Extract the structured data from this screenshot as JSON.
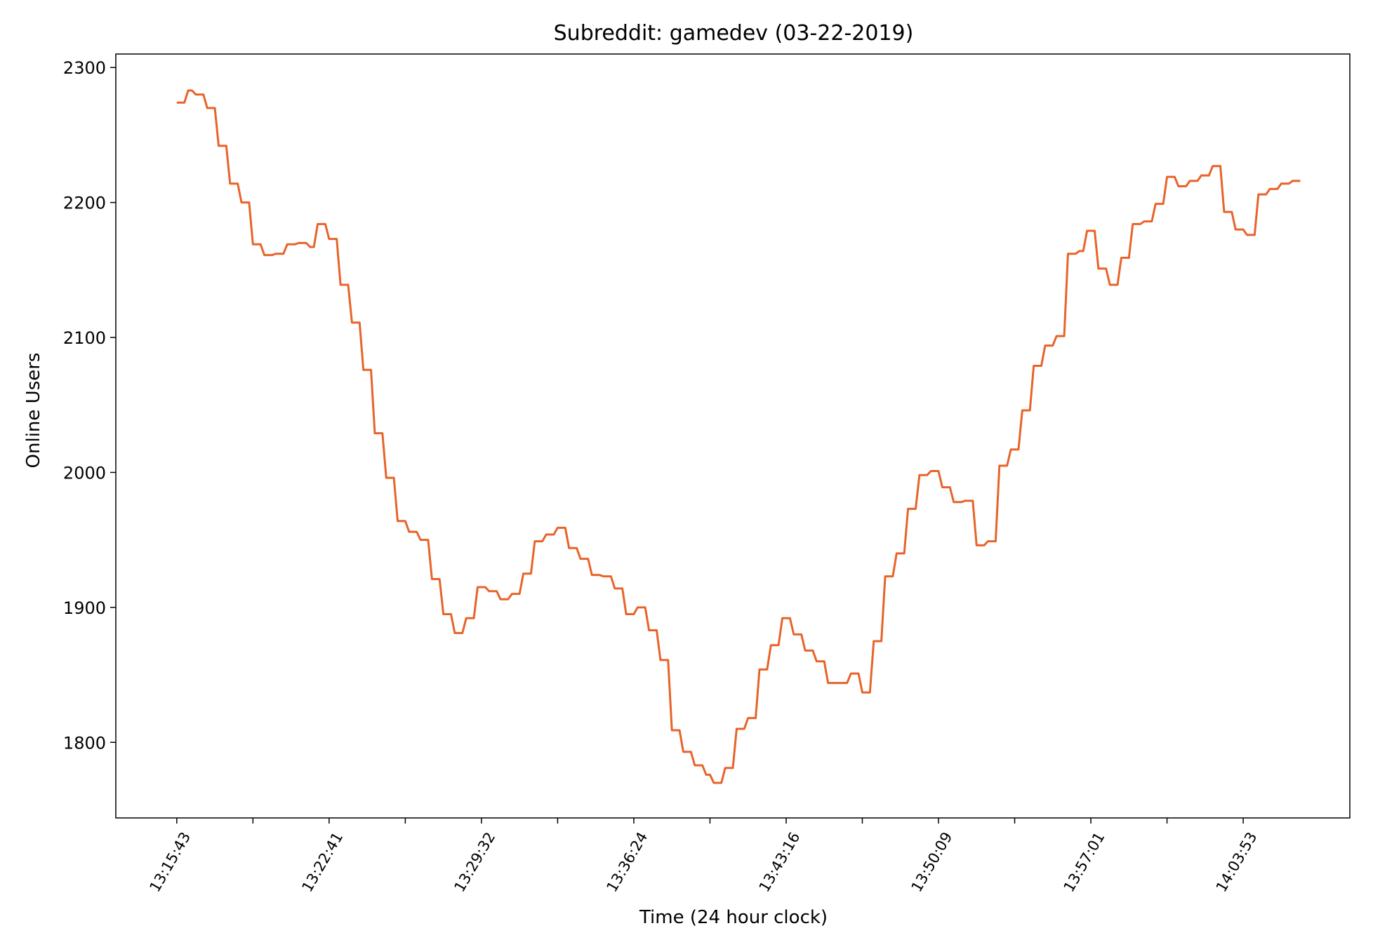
{
  "chart_data": {
    "type": "line",
    "title": "Subreddit: gamedev (03-22-2019)",
    "xlabel": "Time (24 hour clock)",
    "ylabel": "Online Users",
    "ylim": [
      1744,
      2310
    ],
    "xlim": [
      -8,
      154
    ],
    "grid": false,
    "legend": "none",
    "yticks": [
      1800,
      1900,
      2000,
      2100,
      2200,
      2300
    ],
    "xticks": [
      {
        "x": 0,
        "label": "13:15:43"
      },
      {
        "x": 10,
        "label": ""
      },
      {
        "x": 20,
        "label": "13:22:41"
      },
      {
        "x": 30,
        "label": ""
      },
      {
        "x": 40,
        "label": "13:29:32"
      },
      {
        "x": 50,
        "label": ""
      },
      {
        "x": 60,
        "label": "13:36:24"
      },
      {
        "x": 70,
        "label": ""
      },
      {
        "x": 80,
        "label": "13:43:16"
      },
      {
        "x": 90,
        "label": ""
      },
      {
        "x": 100,
        "label": "13:50:09"
      },
      {
        "x": 110,
        "label": ""
      },
      {
        "x": 120,
        "label": "13:57:01"
      },
      {
        "x": 130,
        "label": ""
      },
      {
        "x": 140,
        "label": "14:03:53"
      }
    ],
    "series": [
      {
        "color": "#e8632a",
        "points": [
          [
            0,
            2274
          ],
          [
            1,
            2274
          ],
          [
            1.5,
            2283
          ],
          [
            2,
            2283
          ],
          [
            2.5,
            2280
          ],
          [
            3.5,
            2280
          ],
          [
            4,
            2270
          ],
          [
            5,
            2270
          ],
          [
            5.5,
            2242
          ],
          [
            6.5,
            2242
          ],
          [
            7,
            2214
          ],
          [
            8,
            2214
          ],
          [
            8.5,
            2200
          ],
          [
            9.5,
            2200
          ],
          [
            10,
            2169
          ],
          [
            11,
            2169
          ],
          [
            11.5,
            2161
          ],
          [
            12.5,
            2161
          ],
          [
            13,
            2162
          ],
          [
            14,
            2162
          ],
          [
            14.5,
            2169
          ],
          [
            15.5,
            2169
          ],
          [
            16,
            2170
          ],
          [
            17,
            2170
          ],
          [
            17.5,
            2167
          ],
          [
            18,
            2167
          ],
          [
            18.5,
            2184
          ],
          [
            19.5,
            2184
          ],
          [
            20,
            2173
          ],
          [
            21,
            2173
          ],
          [
            21.5,
            2139
          ],
          [
            22.5,
            2139
          ],
          [
            23,
            2111
          ],
          [
            24,
            2111
          ],
          [
            24.5,
            2076
          ],
          [
            25.5,
            2076
          ],
          [
            26,
            2029
          ],
          [
            27,
            2029
          ],
          [
            27.5,
            1996
          ],
          [
            28.5,
            1996
          ],
          [
            29,
            1964
          ],
          [
            30,
            1964
          ],
          [
            30.5,
            1956
          ],
          [
            31.5,
            1956
          ],
          [
            32,
            1950
          ],
          [
            33,
            1950
          ],
          [
            33.5,
            1921
          ],
          [
            34.5,
            1921
          ],
          [
            35,
            1895
          ],
          [
            36,
            1895
          ],
          [
            36.5,
            1881
          ],
          [
            37.5,
            1881
          ],
          [
            38,
            1892
          ],
          [
            39,
            1892
          ],
          [
            39.5,
            1915
          ],
          [
            40.5,
            1915
          ],
          [
            41,
            1912
          ],
          [
            42,
            1912
          ],
          [
            42.5,
            1906
          ],
          [
            43.5,
            1906
          ],
          [
            44,
            1910
          ],
          [
            45,
            1910
          ],
          [
            45.5,
            1925
          ],
          [
            46.5,
            1925
          ],
          [
            47,
            1949
          ],
          [
            48,
            1949
          ],
          [
            48.5,
            1954
          ],
          [
            49.5,
            1954
          ],
          [
            50,
            1959
          ],
          [
            51,
            1959
          ],
          [
            51.5,
            1944
          ],
          [
            52.5,
            1944
          ],
          [
            53,
            1936
          ],
          [
            54,
            1936
          ],
          [
            54.5,
            1924
          ],
          [
            55.5,
            1924
          ],
          [
            56,
            1923
          ],
          [
            57,
            1923
          ],
          [
            57.5,
            1914
          ],
          [
            58.5,
            1914
          ],
          [
            59,
            1895
          ],
          [
            60,
            1895
          ],
          [
            60.5,
            1900
          ],
          [
            61.5,
            1900
          ],
          [
            62,
            1883
          ],
          [
            63,
            1883
          ],
          [
            63.5,
            1861
          ],
          [
            64.5,
            1861
          ],
          [
            65,
            1809
          ],
          [
            66,
            1809
          ],
          [
            66.5,
            1793
          ],
          [
            67.5,
            1793
          ],
          [
            68,
            1783
          ],
          [
            69,
            1783
          ],
          [
            69.5,
            1776
          ],
          [
            70,
            1776
          ],
          [
            70.5,
            1770
          ],
          [
            71.5,
            1770
          ],
          [
            72,
            1781
          ],
          [
            73,
            1781
          ],
          [
            73.5,
            1810
          ],
          [
            74.5,
            1810
          ],
          [
            75,
            1818
          ],
          [
            76,
            1818
          ],
          [
            76.5,
            1854
          ],
          [
            77.5,
            1854
          ],
          [
            78,
            1872
          ],
          [
            79,
            1872
          ],
          [
            79.5,
            1892
          ],
          [
            80.5,
            1892
          ],
          [
            81,
            1880
          ],
          [
            82,
            1880
          ],
          [
            82.5,
            1868
          ],
          [
            83.5,
            1868
          ],
          [
            84,
            1860
          ],
          [
            85,
            1860
          ],
          [
            85.5,
            1844
          ],
          [
            86.5,
            1844
          ],
          [
            87.5,
            1844
          ],
          [
            88,
            1844
          ],
          [
            88.5,
            1851
          ],
          [
            89.5,
            1851
          ],
          [
            90,
            1837
          ],
          [
            91,
            1837
          ],
          [
            91.5,
            1875
          ],
          [
            92.5,
            1875
          ],
          [
            93,
            1923
          ],
          [
            94,
            1923
          ],
          [
            94.5,
            1940
          ],
          [
            95.5,
            1940
          ],
          [
            96,
            1973
          ],
          [
            97,
            1973
          ],
          [
            97.5,
            1998
          ],
          [
            98.5,
            1998
          ],
          [
            99,
            2001
          ],
          [
            100,
            2001
          ],
          [
            100.5,
            1989
          ],
          [
            101.5,
            1989
          ],
          [
            102,
            1978
          ],
          [
            103,
            1978
          ],
          [
            103.5,
            1979
          ],
          [
            104.5,
            1979
          ],
          [
            105,
            1946
          ],
          [
            106,
            1946
          ],
          [
            106.5,
            1949
          ],
          [
            107.5,
            1949
          ],
          [
            108,
            2005
          ],
          [
            109,
            2005
          ],
          [
            109.5,
            2017
          ],
          [
            110.5,
            2017
          ],
          [
            111,
            2046
          ],
          [
            112,
            2046
          ],
          [
            112.5,
            2079
          ],
          [
            113.5,
            2079
          ],
          [
            114,
            2094
          ],
          [
            115,
            2094
          ],
          [
            115.5,
            2101
          ],
          [
            116.5,
            2101
          ],
          [
            117,
            2162
          ],
          [
            118,
            2162
          ],
          [
            118.5,
            2164
          ],
          [
            119,
            2164
          ],
          [
            119.5,
            2179
          ],
          [
            120.5,
            2179
          ],
          [
            121,
            2151
          ],
          [
            122,
            2151
          ],
          [
            122.5,
            2139
          ],
          [
            123.5,
            2139
          ],
          [
            124,
            2159
          ],
          [
            125,
            2159
          ],
          [
            125.5,
            2184
          ],
          [
            126.5,
            2184
          ],
          [
            127,
            2186
          ],
          [
            128,
            2186
          ],
          [
            128.5,
            2199
          ],
          [
            129.5,
            2199
          ],
          [
            130,
            2219
          ],
          [
            131,
            2219
          ],
          [
            131.5,
            2212
          ],
          [
            132.5,
            2212
          ],
          [
            133,
            2216
          ],
          [
            134,
            2216
          ],
          [
            134.5,
            2220
          ],
          [
            135.5,
            2220
          ],
          [
            136,
            2227
          ],
          [
            137,
            2227
          ],
          [
            137.5,
            2193
          ],
          [
            138.5,
            2193
          ],
          [
            139,
            2180
          ],
          [
            140,
            2180
          ],
          [
            140.5,
            2176
          ],
          [
            141.5,
            2176
          ],
          [
            142,
            2206
          ],
          [
            143,
            2206
          ],
          [
            143.5,
            2210
          ],
          [
            144.5,
            2210
          ],
          [
            145,
            2214
          ],
          [
            146,
            2214
          ],
          [
            146.5,
            2216
          ],
          [
            147.5,
            2216
          ]
        ]
      }
    ]
  }
}
